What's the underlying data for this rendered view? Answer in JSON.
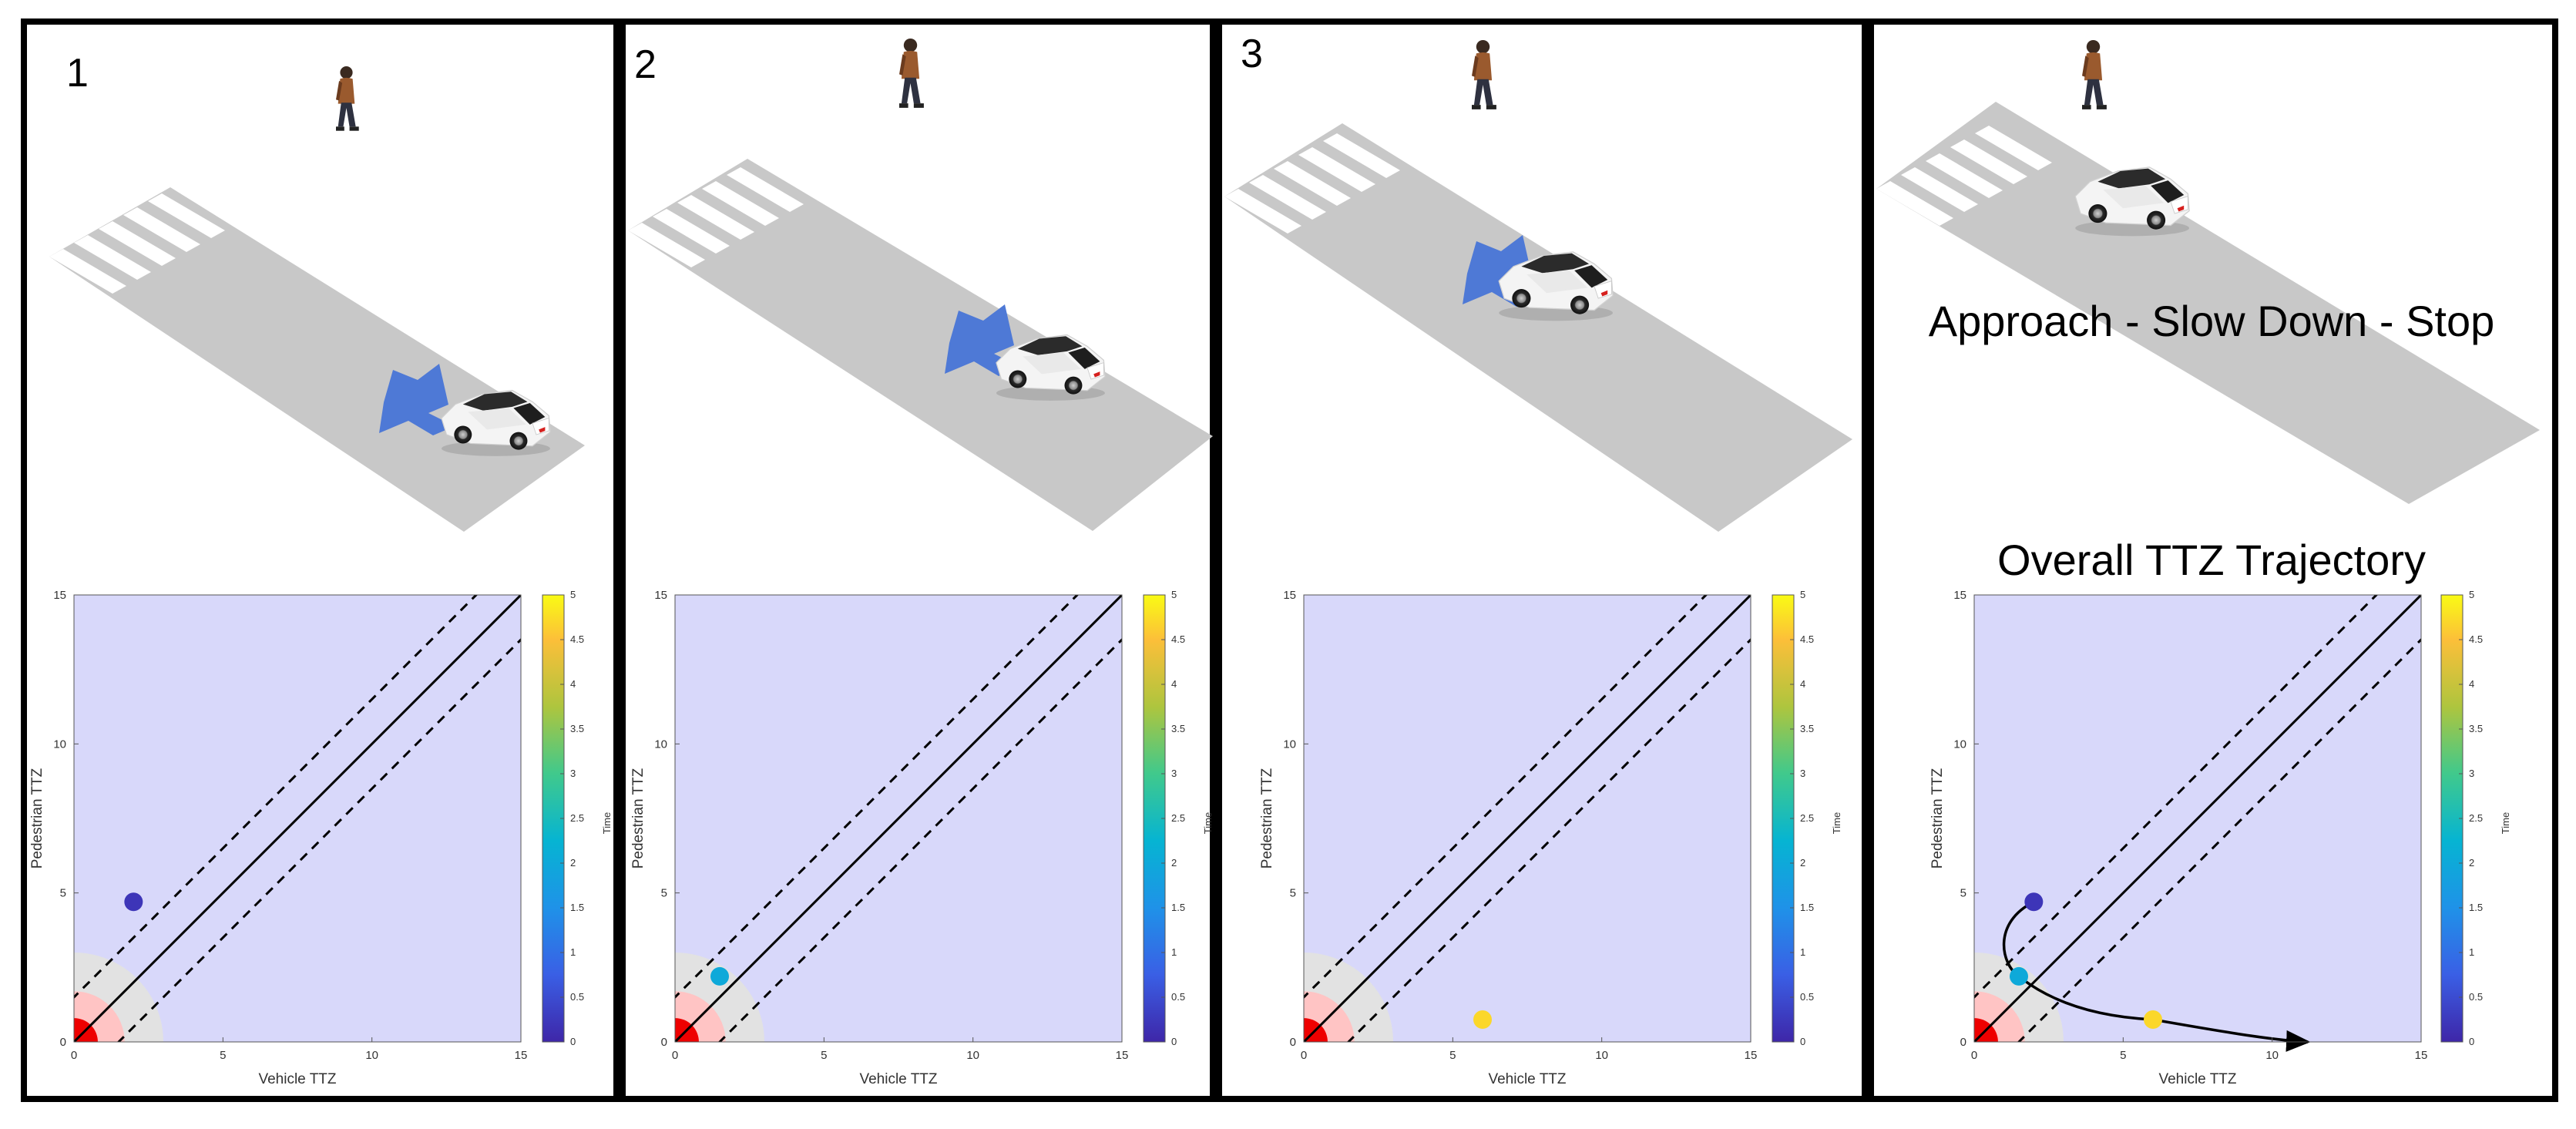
{
  "panels": [
    {
      "number": "1",
      "point": {
        "vehicle_ttz": 2.0,
        "pedestrian_ttz": 4.7,
        "time": 0.2
      }
    },
    {
      "number": "2",
      "point": {
        "vehicle_ttz": 1.5,
        "pedestrian_ttz": 2.2,
        "time": 2.0
      }
    },
    {
      "number": "3",
      "point": {
        "vehicle_ttz": 6.0,
        "pedestrian_ttz": 0.75,
        "time": 4.7
      }
    },
    {
      "number": "",
      "caption": "Approach - Slow Down - Stop",
      "plot_title": "Overall TTZ Trajectory",
      "points": [
        {
          "vehicle_ttz": 2.0,
          "pedestrian_ttz": 4.7,
          "time": 0.2
        },
        {
          "vehicle_ttz": 1.5,
          "pedestrian_ttz": 2.2,
          "time": 2.0
        },
        {
          "vehicle_ttz": 6.0,
          "pedestrian_ttz": 0.75,
          "time": 4.7
        }
      ],
      "trajectory_end": {
        "vehicle_ttz": 11.2,
        "pedestrian_ttz": 0.0
      }
    }
  ],
  "chart_data": {
    "type": "scatter",
    "xlabel": "Vehicle TTZ",
    "ylabel": "Pedestrian TTZ",
    "xlim": [
      0,
      15
    ],
    "ylim": [
      0,
      15
    ],
    "xticks": [
      "0",
      "5",
      "10",
      "15"
    ],
    "yticks": [
      "0",
      "5",
      "10",
      "15"
    ],
    "colorbar": {
      "label": "Time",
      "range": [
        0,
        5
      ],
      "ticks": [
        "0",
        "0.5",
        "1",
        "1.5",
        "2",
        "2.5",
        "3",
        "3.5",
        "4",
        "4.5",
        "5"
      ]
    },
    "diagonal": {
      "solid_offset": 0,
      "dashed_offsets": [
        1.5,
        -1.5
      ]
    }
  },
  "colors": {
    "plot_bg": "#d8d8fa",
    "arrow": "#4e79d6",
    "road": "#c8c8c8",
    "danger_core": "#ee0000",
    "danger_mid": "#ffc4c4",
    "danger_outer": "#e2e2e2"
  }
}
